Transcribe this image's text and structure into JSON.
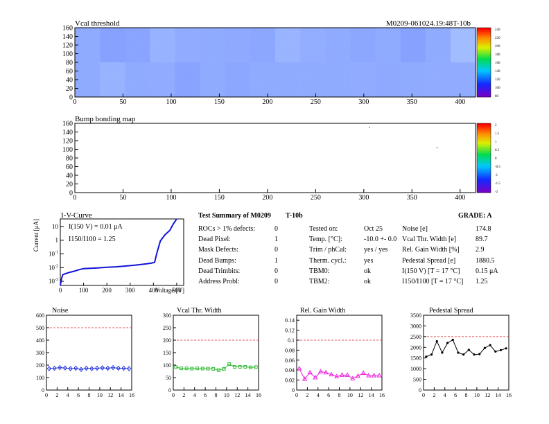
{
  "header": {
    "vcal_title": "Vcal threshold",
    "module_id": "M0209-061024.19:48T-10b",
    "bump_title": "Bump bonding map"
  },
  "maps": {
    "yticks": [
      "0",
      "20",
      "40",
      "60",
      "80",
      "100",
      "120",
      "140",
      "160"
    ],
    "xticks": [
      "0",
      "50",
      "100",
      "150",
      "200",
      "250",
      "300",
      "350",
      "400"
    ],
    "vcal_scale": [
      "80",
      "100",
      "120",
      "140",
      "160",
      "180",
      "200",
      "220",
      "240"
    ],
    "bump_scale": [
      "-2",
      "-1.5",
      "-1",
      "-0.5",
      "0",
      "0.5",
      "1",
      "1.5",
      "2"
    ]
  },
  "summary": {
    "title": "Test Summary of M0209",
    "test": "T-10b",
    "grade": "GRADE:  A",
    "rows": [
      {
        "label": "ROCs > 1% defects:",
        "value": "0",
        "k2": "Tested on:",
        "v2": "Oct 25",
        "k3": "Noise [e]",
        "v3": "174.8"
      },
      {
        "label": "Dead Pixel:",
        "value": "1",
        "k2": "Temp. [°C]:",
        "v2": "-10.0 +- 0.0",
        "k3": "Vcal Thr. Width [e]",
        "v3": "89.7"
      },
      {
        "label": "Mask Defects:",
        "value": "0",
        "k2": "Trim / phCal:",
        "v2": "yes / yes",
        "k3": "Rel. Gain Width [%]",
        "v3": "2.9"
      },
      {
        "label": "Dead Bumps:",
        "value": "1",
        "k2": "Therm. cycl.:",
        "v2": "yes",
        "k3": "Pedestal Spread [e]",
        "v3": "1880.5"
      },
      {
        "label": "Dead Trimbits:",
        "value": "0",
        "k2": "TBM0:",
        "v2": "ok",
        "k3": "I(150 V) [T = 17 °C]",
        "v3": "0.15 μA"
      },
      {
        "label": "Address Probl:",
        "value": "0",
        "k2": "TBM2:",
        "v2": "ok",
        "k3": "I150/I100   [T = 17 °C]",
        "v3": "1.25"
      }
    ]
  },
  "chart_data": [
    {
      "type": "heatmap",
      "title": "Vcal threshold",
      "xlim": [
        0,
        416
      ],
      "ylim": [
        0,
        160
      ],
      "z_range": [
        80,
        240
      ],
      "rocs": [
        {
          "row": "top",
          "values": [
            150,
            162,
            158,
            140,
            148,
            150,
            152,
            155,
            138,
            146,
            150,
            155,
            150,
            162,
            150,
            128
          ]
        },
        {
          "row": "bottom",
          "values": [
            150,
            140,
            150,
            148,
            160,
            150,
            155,
            150,
            150,
            150,
            150,
            148,
            152,
            150,
            148,
            148
          ]
        }
      ]
    },
    {
      "type": "heatmap",
      "title": "Bump bonding map",
      "xlim": [
        0,
        416
      ],
      "ylim": [
        0,
        160
      ],
      "z_range": [
        -2,
        2
      ],
      "points": [
        {
          "x": 306,
          "y": 151
        },
        {
          "x": 376,
          "y": 104
        }
      ]
    },
    {
      "type": "line",
      "title": "I-V-Curve",
      "xlabel": "Voltage [V]",
      "ylabel": "Current [μA]",
      "xticks": [
        "0",
        "100",
        "200",
        "300",
        "400",
        "500"
      ],
      "yticks": [
        "10^-3",
        "10^-2",
        "10^-1",
        "1",
        "10"
      ],
      "xlim": [
        0,
        530
      ],
      "ylim_log10": [
        -3.3,
        1.55
      ],
      "annotations": [
        "I(150 V) = 0.01 μA",
        "I150/I100 = 1.25"
      ],
      "x": [
        0,
        5,
        10,
        20,
        30,
        40,
        60,
        80,
        100,
        130,
        160,
        200,
        240,
        280,
        320,
        360,
        390,
        405,
        415,
        430,
        450,
        470,
        485,
        500
      ],
      "y": [
        0.0005,
        0.0015,
        0.003,
        0.0035,
        0.004,
        0.0045,
        0.0055,
        0.007,
        0.0085,
        0.009,
        0.0095,
        0.0105,
        0.0115,
        0.013,
        0.015,
        0.018,
        0.021,
        0.024,
        0.12,
        0.9,
        2.5,
        5,
        15,
        40
      ]
    },
    {
      "type": "line",
      "title": "Noise",
      "color": "#2233dd",
      "marker": "diamond",
      "xticks": [
        "0",
        "2",
        "4",
        "6",
        "8",
        "10",
        "12",
        "14",
        "16"
      ],
      "yticks": [
        "0",
        "100",
        "200",
        "300",
        "400",
        "500",
        "600"
      ],
      "xlim": [
        0,
        16
      ],
      "ylim": [
        0,
        600
      ],
      "threshold": 500,
      "x": [
        0,
        1,
        2,
        3,
        4,
        5,
        6,
        7,
        8,
        9,
        10,
        11,
        12,
        13,
        14,
        15
      ],
      "y": [
        172,
        175,
        180,
        177,
        172,
        175,
        165,
        175,
        172,
        175,
        178,
        175,
        180,
        175,
        175,
        172
      ]
    },
    {
      "type": "line",
      "title": "Vcal Thr. Width",
      "color": "#33bb33",
      "marker": "square",
      "xticks": [
        "0",
        "2",
        "4",
        "6",
        "8",
        "10",
        "12",
        "14",
        "16"
      ],
      "yticks": [
        "0",
        "50",
        "100",
        "150",
        "200",
        "250",
        "300"
      ],
      "xlim": [
        0,
        16
      ],
      "ylim": [
        0,
        300
      ],
      "threshold": 200,
      "x": [
        0,
        1,
        2,
        3,
        4,
        5,
        6,
        7,
        8,
        9,
        10,
        11,
        12,
        13,
        14,
        15
      ],
      "y": [
        92,
        87,
        87,
        86,
        87,
        86,
        86,
        85,
        80,
        85,
        104,
        93,
        93,
        93,
        91,
        92
      ]
    },
    {
      "type": "line",
      "title": "Rel. Gain Width",
      "color": "#ee22dd",
      "marker": "triangle",
      "xticks": [
        "0",
        "2",
        "4",
        "6",
        "8",
        "10",
        "12",
        "14",
        "16"
      ],
      "yticks": [
        "0",
        "0.02",
        "0.04",
        "0.06",
        "0.08",
        "0.1",
        "0.12",
        "0.14"
      ],
      "xlim": [
        0,
        16
      ],
      "ylim": [
        0,
        0.15
      ],
      "threshold": 0.1,
      "x": [
        0,
        1,
        2,
        3,
        4,
        5,
        6,
        7,
        8,
        9,
        10,
        11,
        12,
        13,
        14,
        15
      ],
      "y": [
        0.043,
        0.022,
        0.035,
        0.025,
        0.037,
        0.035,
        0.031,
        0.027,
        0.03,
        0.03,
        0.023,
        0.028,
        0.034,
        0.029,
        0.029,
        0.029
      ]
    },
    {
      "type": "line",
      "title": "Pedestal Spread",
      "color": "#000000",
      "marker": "dot",
      "xticks": [
        "0",
        "2",
        "4",
        "6",
        "8",
        "10",
        "12",
        "14",
        "16"
      ],
      "yticks": [
        "0",
        "500",
        "1000",
        "1500",
        "2000",
        "2500",
        "3000",
        "3500"
      ],
      "xlim": [
        0,
        16
      ],
      "ylim": [
        0,
        3500
      ],
      "threshold": 2500,
      "x": [
        0,
        1,
        2,
        3,
        4,
        5,
        6,
        7,
        8,
        9,
        10,
        11,
        12,
        13,
        14,
        15
      ],
      "y": [
        1560,
        1660,
        2280,
        1750,
        2200,
        2350,
        1750,
        1660,
        1880,
        1660,
        1680,
        1970,
        2100,
        1800,
        1870,
        1950
      ]
    }
  ]
}
